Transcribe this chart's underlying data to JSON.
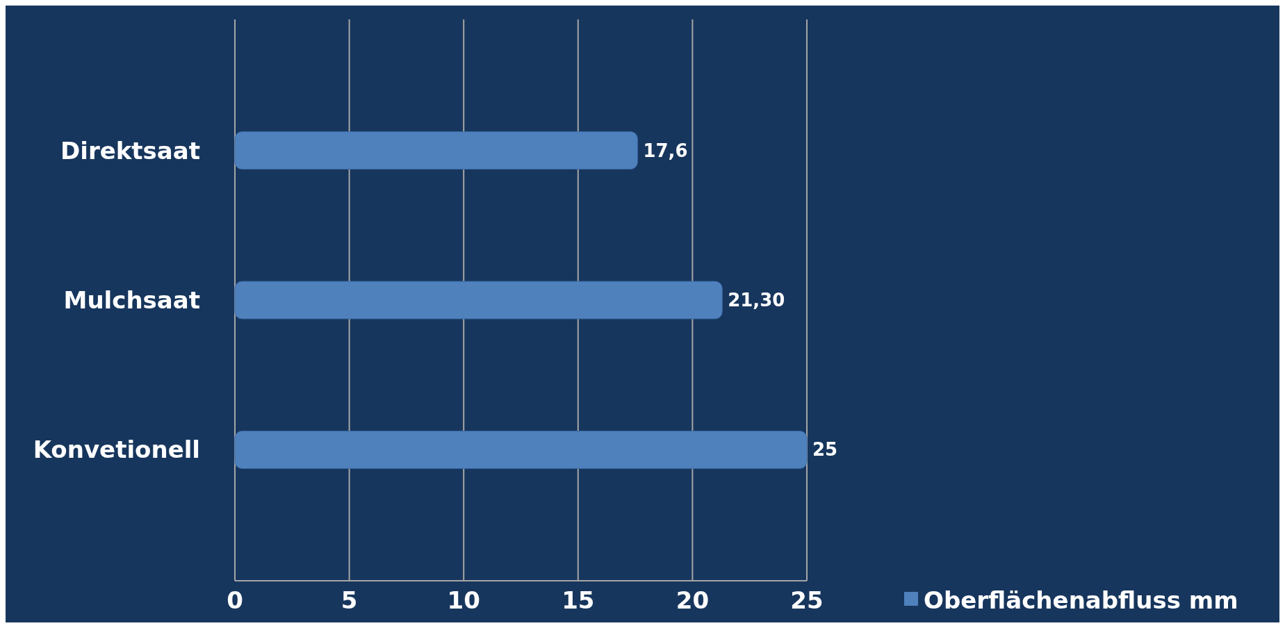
{
  "chart_data": {
    "type": "bar",
    "orientation": "horizontal",
    "categories": [
      "Direktsaat",
      "Mulchsaat",
      "Konvetionell"
    ],
    "series": [
      {
        "name": "Oberflächenabfluss mm",
        "color": "#4f81bd",
        "values": [
          17.6,
          21.3,
          25
        ],
        "value_labels": [
          "17,6",
          "21,30",
          "25"
        ]
      }
    ],
    "xlim": [
      0,
      25
    ],
    "xticks": [
      0,
      5,
      10,
      15,
      20,
      25
    ],
    "grid": "x",
    "legend": "bottom right"
  }
}
